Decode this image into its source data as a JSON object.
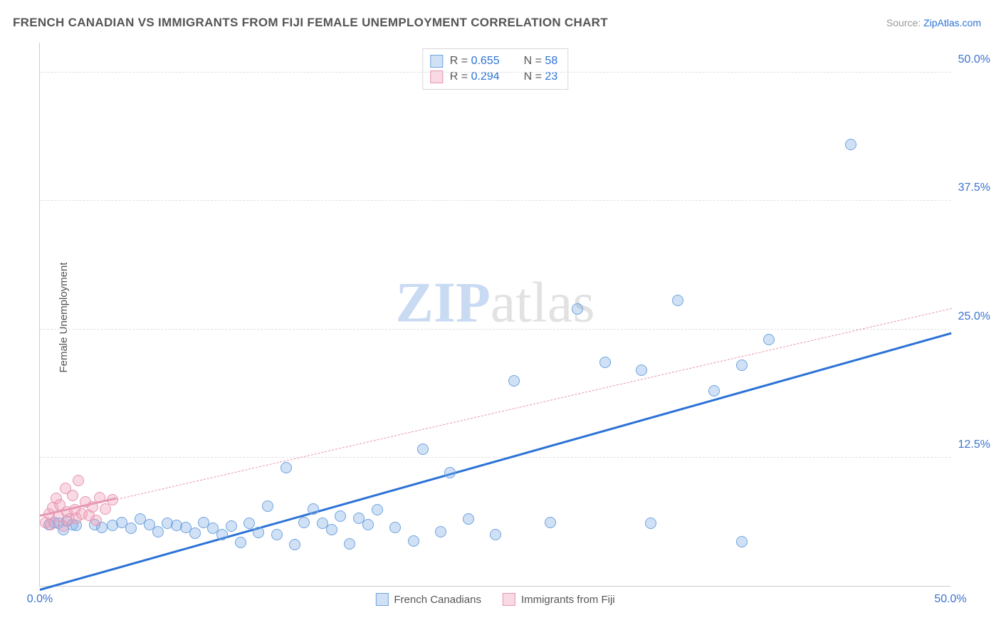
{
  "title": "FRENCH CANADIAN VS IMMIGRANTS FROM FIJI FEMALE UNEMPLOYMENT CORRELATION CHART",
  "source_prefix": "Source: ",
  "source_site": "ZipAtlas.com",
  "ylabel": "Female Unemployment",
  "watermark_a": "ZIP",
  "watermark_b": "atlas",
  "chart": {
    "type": "scatter",
    "xlim": [
      0,
      50
    ],
    "ylim": [
      0,
      53
    ],
    "xtick_min": "0.0%",
    "xtick_max": "50.0%",
    "yticks": [
      {
        "v": 12.5,
        "label": "12.5%"
      },
      {
        "v": 25.0,
        "label": "25.0%"
      },
      {
        "v": 37.5,
        "label": "37.5%"
      },
      {
        "v": 50.0,
        "label": "50.0%"
      }
    ],
    "grid_color": "#e0e0e0",
    "axis_color": "#cccccc",
    "tick_color": "#3b73d1",
    "background_color": "#ffffff",
    "marker_radius": 8,
    "marker_stroke": 1.5,
    "series": [
      {
        "name": "French Canadians",
        "fill": "rgba(120,170,230,0.35)",
        "stroke": "#6fa3df",
        "R": "0.655",
        "N": "58",
        "trend": {
          "x1": 0,
          "y1": -0.5,
          "x2": 50,
          "y2": 24.5,
          "color": "#2b72d6",
          "style": "solid",
          "dash_from_x": null
        },
        "points": [
          [
            0.5,
            6.0
          ],
          [
            0.8,
            6.2
          ],
          [
            1.0,
            6.1
          ],
          [
            1.3,
            5.5
          ],
          [
            1.5,
            6.3
          ],
          [
            1.8,
            6.0
          ],
          [
            2.0,
            5.9
          ],
          [
            3.0,
            6.0
          ],
          [
            3.4,
            5.7
          ],
          [
            4.0,
            5.9
          ],
          [
            4.5,
            6.2
          ],
          [
            5.0,
            5.6
          ],
          [
            5.5,
            6.5
          ],
          [
            6.0,
            6.0
          ],
          [
            6.5,
            5.3
          ],
          [
            7.0,
            6.1
          ],
          [
            7.5,
            5.9
          ],
          [
            8.0,
            5.7
          ],
          [
            8.5,
            5.1
          ],
          [
            9.0,
            6.2
          ],
          [
            9.5,
            5.6
          ],
          [
            10.0,
            5.0
          ],
          [
            10.5,
            5.8
          ],
          [
            11.0,
            4.2
          ],
          [
            11.5,
            6.1
          ],
          [
            12.0,
            5.2
          ],
          [
            12.5,
            7.8
          ],
          [
            13.0,
            5.0
          ],
          [
            13.5,
            11.5
          ],
          [
            14.0,
            4.0
          ],
          [
            14.5,
            6.2
          ],
          [
            15.0,
            7.5
          ],
          [
            15.5,
            6.1
          ],
          [
            16.0,
            5.5
          ],
          [
            16.5,
            6.8
          ],
          [
            17.0,
            4.1
          ],
          [
            17.5,
            6.6
          ],
          [
            18.0,
            6.0
          ],
          [
            18.5,
            7.4
          ],
          [
            19.5,
            5.7
          ],
          [
            20.5,
            4.4
          ],
          [
            21.0,
            13.3
          ],
          [
            22.0,
            5.3
          ],
          [
            22.5,
            11.0
          ],
          [
            23.5,
            6.5
          ],
          [
            25.0,
            5.0
          ],
          [
            26.0,
            20.0
          ],
          [
            28.0,
            6.2
          ],
          [
            29.5,
            27.0
          ],
          [
            31.0,
            21.8
          ],
          [
            33.0,
            21.0
          ],
          [
            33.5,
            6.1
          ],
          [
            35.0,
            27.8
          ],
          [
            37.0,
            19.0
          ],
          [
            38.5,
            21.5
          ],
          [
            38.5,
            4.3
          ],
          [
            40.0,
            24.0
          ],
          [
            44.5,
            43.0
          ]
        ]
      },
      {
        "name": "Immigrants from Fiji",
        "fill": "rgba(240,160,185,0.40)",
        "stroke": "#e695b2",
        "R": "0.294",
        "N": "23",
        "trend": {
          "x1": 0,
          "y1": 6.7,
          "x2": 50,
          "y2": 27.0,
          "color": "#e695b2",
          "style": "dash",
          "dash_from_x": 4.2
        },
        "points": [
          [
            0.3,
            6.2
          ],
          [
            0.5,
            7.0
          ],
          [
            0.6,
            6.0
          ],
          [
            0.7,
            7.6
          ],
          [
            0.9,
            8.5
          ],
          [
            1.0,
            6.8
          ],
          [
            1.1,
            7.9
          ],
          [
            1.3,
            5.8
          ],
          [
            1.4,
            9.5
          ],
          [
            1.5,
            7.2
          ],
          [
            1.6,
            6.5
          ],
          [
            1.8,
            8.8
          ],
          [
            1.9,
            7.4
          ],
          [
            2.0,
            6.6
          ],
          [
            2.1,
            10.3
          ],
          [
            2.3,
            7.0
          ],
          [
            2.5,
            8.2
          ],
          [
            2.7,
            6.9
          ],
          [
            2.9,
            7.7
          ],
          [
            3.1,
            6.4
          ],
          [
            3.3,
            8.6
          ],
          [
            3.6,
            7.5
          ],
          [
            4.0,
            8.4
          ]
        ]
      }
    ]
  },
  "legend_bottom": [
    {
      "label": "French Canadians",
      "fill": "rgba(120,170,230,0.35)",
      "stroke": "#6fa3df"
    },
    {
      "label": "Immigrants from Fiji",
      "fill": "rgba(240,160,185,0.40)",
      "stroke": "#e695b2"
    }
  ]
}
